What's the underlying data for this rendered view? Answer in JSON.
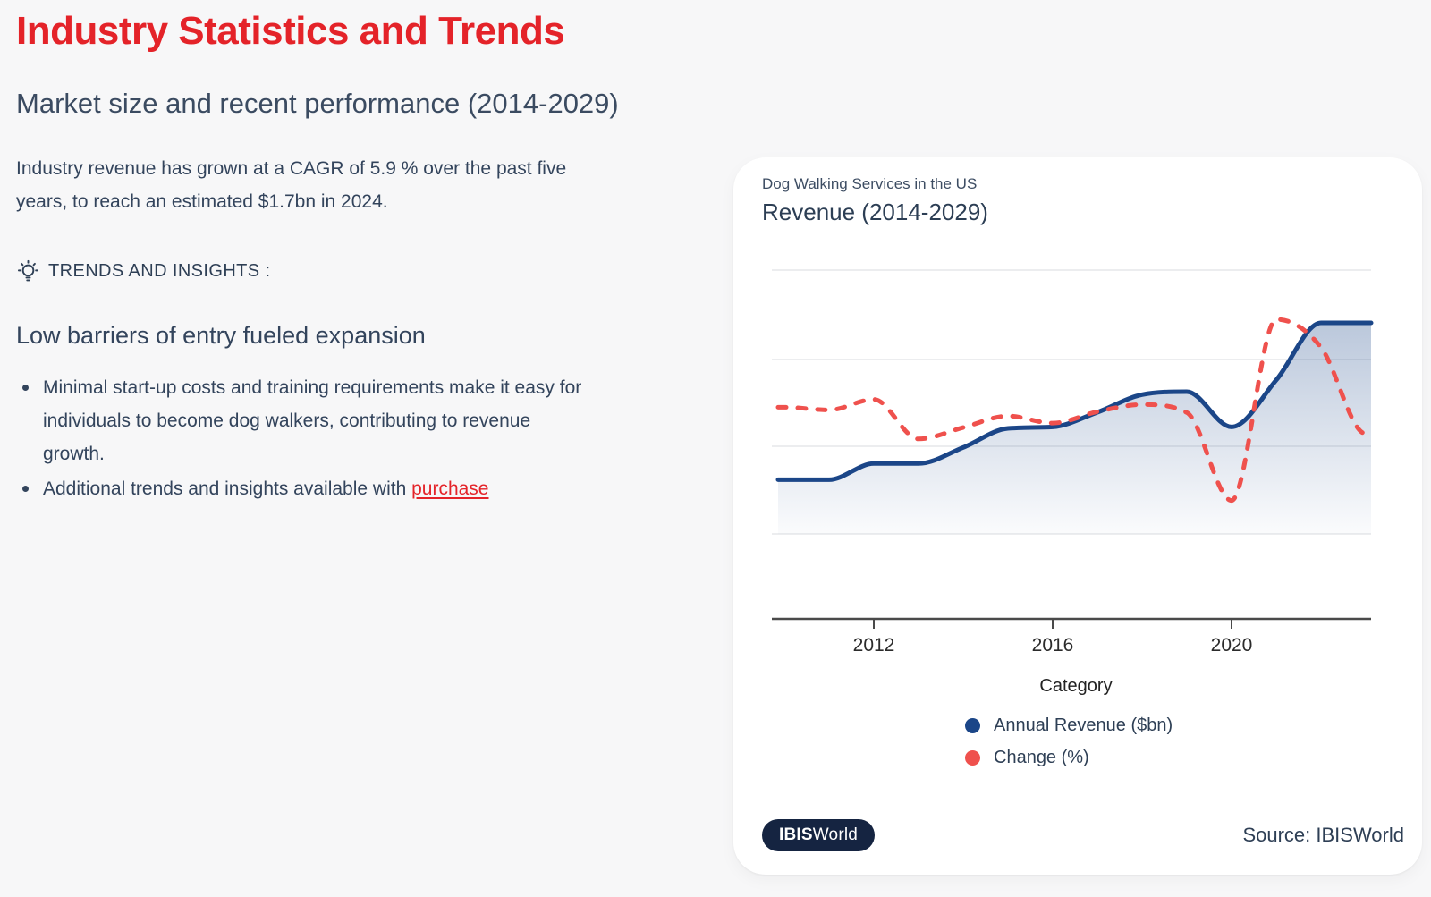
{
  "theme": {
    "accent_red": "#e42329",
    "heading_slate": "#2e3f55",
    "page_background": "#f7f7f8",
    "card_background": "#ffffff"
  },
  "page": {
    "title": "Industry Statistics and Trends",
    "subtitle": "Market size and recent performance (2014-2029)",
    "intro": "Industry revenue has grown at a CAGR of 5.9 % over the past five years, to reach an estimated $1.7bn in 2024.",
    "trends_label": "TRENDS AND INSIGHTS :",
    "trends_icon": "lightbulb-icon",
    "insight_heading": "Low barriers of entry fueled expansion",
    "bullet_1": "Minimal start-up costs and training requirements make it easy for individuals to become dog walkers, contributing to revenue growth.",
    "bullet_2_prefix": "Additional trends and insights available with ",
    "bullet_2_link": "purchase"
  },
  "chart_card": {
    "kicker": "Dog Walking Services in the US",
    "title": "Revenue (2014-2029)",
    "badge": {
      "bold": "IBIS",
      "regular": "World"
    },
    "source": "Source: IBISWorld"
  },
  "chart_data": {
    "type": "line",
    "subtitle": "Dog Walking Services in the US",
    "title": "Revenue (2014-2029)",
    "xlabel": "Category",
    "grid": true,
    "legend_position": "bottom",
    "x": [
      2010,
      2011,
      2012,
      2013,
      2014,
      2015,
      2016,
      2017,
      2018,
      2019,
      2020,
      2021,
      2022,
      2023
    ],
    "x_ticks": [
      2012,
      2016,
      2020
    ],
    "x_tick_labels": [
      "2012",
      "2016",
      "2020"
    ],
    "series": [
      {
        "name": "Annual Revenue ($bn)",
        "color": "#1b4688",
        "style": "solid",
        "area_fill": true,
        "axis_range": [
          0,
          1.8
        ],
        "values": [
          0.37,
          0.37,
          0.48,
          0.48,
          0.59,
          0.72,
          0.73,
          0.83,
          0.95,
          0.97,
          0.73,
          1.05,
          1.44,
          1.44
        ]
      },
      {
        "name": "Change (%)",
        "color": "#ef514d",
        "style": "dashed",
        "area_fill": false,
        "axis_range": [
          -10,
          20
        ],
        "values": [
          4.4,
          4.1,
          5.3,
          0.8,
          2.1,
          3.4,
          2.6,
          3.9,
          4.7,
          3.8,
          -6.2,
          14.4,
          11.2,
          1.4
        ]
      }
    ]
  }
}
